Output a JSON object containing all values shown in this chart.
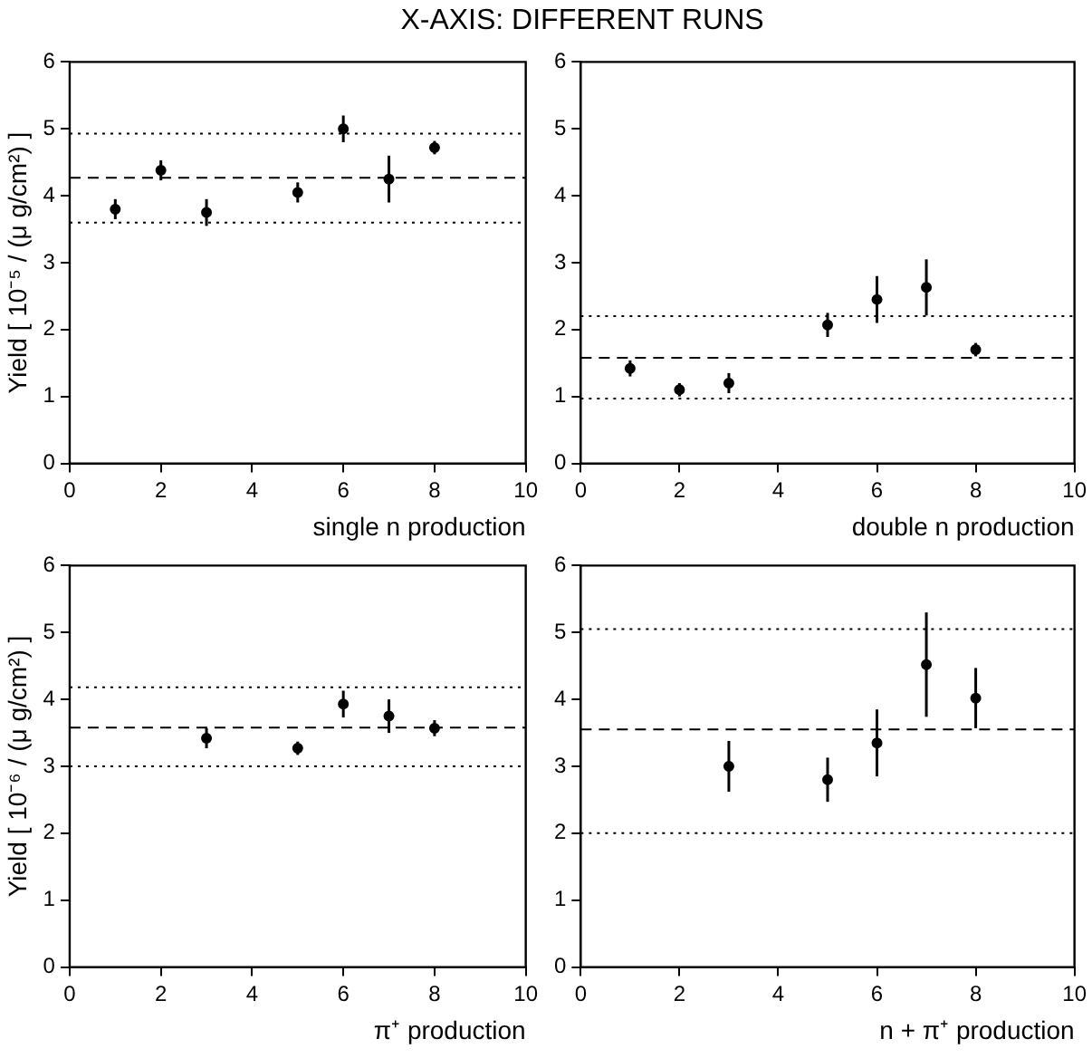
{
  "chart_data": [
    {
      "type": "scatter",
      "title": "X-AXIS: DIFFERENT RUNS",
      "xlabel": "single n production",
      "ylabel": "Yield [ 10⁻⁵ / (μ g/cm²) ]",
      "x": [
        1,
        2,
        3,
        5,
        6,
        7,
        8
      ],
      "values": [
        3.8,
        4.38,
        3.75,
        4.05,
        5.0,
        4.25,
        4.72
      ],
      "errors": [
        0.15,
        0.15,
        0.2,
        0.15,
        0.2,
        0.35,
        0.1
      ],
      "color": "#000000",
      "marker": "circle",
      "grid": false,
      "xlim": [
        0,
        10
      ],
      "xticks": [
        0,
        2,
        4,
        6,
        8,
        10
      ],
      "ylim": [
        0,
        6
      ],
      "yticks": [
        0,
        1,
        2,
        3,
        4,
        5,
        6
      ],
      "ref_lines": [
        {
          "axis": "y",
          "value": 4.27,
          "color": "#000000",
          "line_style": "dashed"
        },
        {
          "axis": "y",
          "value": 3.6,
          "color": "#000000",
          "line_style": "dotted"
        },
        {
          "axis": "y",
          "value": 4.93,
          "color": "#000000",
          "line_style": "dotted"
        }
      ]
    },
    {
      "type": "scatter",
      "xlabel": "double n production",
      "x": [
        1,
        2,
        3,
        5,
        6,
        7,
        8
      ],
      "values": [
        1.42,
        1.1,
        1.2,
        2.07,
        2.45,
        2.63,
        1.7
      ],
      "errors": [
        0.12,
        0.1,
        0.15,
        0.18,
        0.35,
        0.42,
        0.1
      ],
      "color": "#000000",
      "marker": "circle",
      "grid": false,
      "xlim": [
        0,
        10
      ],
      "xticks": [
        0,
        2,
        4,
        6,
        8,
        10
      ],
      "ylim": [
        0,
        6
      ],
      "yticks": [
        0,
        1,
        2,
        3,
        4,
        5,
        6
      ],
      "ref_lines": [
        {
          "axis": "y",
          "value": 1.58,
          "color": "#000000",
          "line_style": "dashed"
        },
        {
          "axis": "y",
          "value": 0.97,
          "color": "#000000",
          "line_style": "dotted"
        },
        {
          "axis": "y",
          "value": 2.2,
          "color": "#000000",
          "line_style": "dotted"
        }
      ]
    },
    {
      "type": "scatter",
      "xlabel": "π⁺ production",
      "ylabel": "Yield [ 10⁻⁶ / (μ g/cm²) ]",
      "x": [
        3,
        5,
        6,
        7,
        8
      ],
      "values": [
        3.42,
        3.27,
        3.93,
        3.75,
        3.57
      ],
      "errors": [
        0.15,
        0.1,
        0.2,
        0.25,
        0.12
      ],
      "color": "#000000",
      "marker": "circle",
      "grid": false,
      "xlim": [
        0,
        10
      ],
      "xticks": [
        0,
        2,
        4,
        6,
        8,
        10
      ],
      "ylim": [
        0,
        6
      ],
      "yticks": [
        0,
        1,
        2,
        3,
        4,
        5,
        6
      ],
      "ref_lines": [
        {
          "axis": "y",
          "value": 3.58,
          "color": "#000000",
          "line_style": "dashed"
        },
        {
          "axis": "y",
          "value": 3.0,
          "color": "#000000",
          "line_style": "dotted"
        },
        {
          "axis": "y",
          "value": 4.18,
          "color": "#000000",
          "line_style": "dotted"
        }
      ]
    },
    {
      "type": "scatter",
      "xlabel": "n + π⁺ production",
      "x": [
        3,
        5,
        6,
        7,
        8
      ],
      "values": [
        3.0,
        2.8,
        3.35,
        4.52,
        4.02
      ],
      "errors": [
        0.38,
        0.33,
        0.5,
        0.78,
        0.45
      ],
      "color": "#000000",
      "marker": "circle",
      "grid": false,
      "xlim": [
        0,
        10
      ],
      "xticks": [
        0,
        2,
        4,
        6,
        8,
        10
      ],
      "ylim": [
        0,
        6
      ],
      "yticks": [
        0,
        1,
        2,
        3,
        4,
        5,
        6
      ],
      "ref_lines": [
        {
          "axis": "y",
          "value": 3.55,
          "color": "#000000",
          "line_style": "dashed"
        },
        {
          "axis": "y",
          "value": 2.0,
          "color": "#000000",
          "line_style": "dotted"
        },
        {
          "axis": "y",
          "value": 5.05,
          "color": "#000000",
          "line_style": "dotted"
        }
      ]
    }
  ]
}
